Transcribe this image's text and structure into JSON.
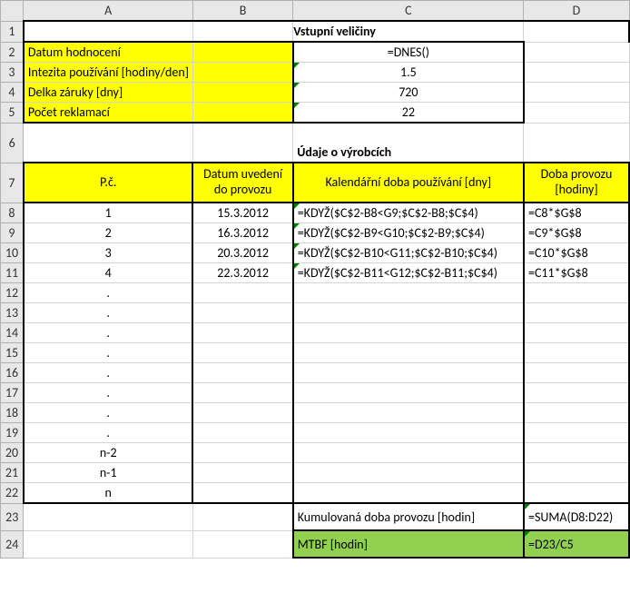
{
  "colHeaders": {
    "A": "A",
    "B": "B",
    "C": "C",
    "D": "D"
  },
  "rowHeaders": [
    "1",
    "2",
    "3",
    "4",
    "5",
    "6",
    "7",
    "8",
    "9",
    "10",
    "11",
    "12",
    "13",
    "14",
    "15",
    "16",
    "17",
    "18",
    "19",
    "20",
    "21",
    "22",
    "23",
    "24"
  ],
  "section1": {
    "title": "Vstupní veličiny",
    "rows": [
      {
        "label": "Datum hodnocení",
        "value": "=DNES()"
      },
      {
        "label": "Intezita používání [hodiny/den]",
        "value": "1.5"
      },
      {
        "label": "Delka záruky [dny]",
        "value": "720"
      },
      {
        "label": "Počet reklamací",
        "value": "22"
      }
    ]
  },
  "section2": {
    "title": "Údaje o výrobcích",
    "headers": {
      "A": "P.č.",
      "B": "Datum uvedení do provozu",
      "C": "Kalendářní doba používání [dny]",
      "D": "Doba provozu [hodiny]"
    },
    "rows": [
      {
        "A": "1",
        "B": "15.3.2012",
        "C": "=KDYŽ($C$2-B8<G9;$C$2-B8;$C$4)",
        "D": "=C8*$G$8"
      },
      {
        "A": "2",
        "B": "16.3.2012",
        "C": "=KDYŽ($C$2-B9<G10;$C$2-B9;$C$4)",
        "D": "=C9*$G$8"
      },
      {
        "A": "3",
        "B": "20.3.2012",
        "C": "=KDYŽ($C$2-B10<G11;$C$2-B10;$C$4)",
        "D": "=C10*$G$8"
      },
      {
        "A": "4",
        "B": "22.3.2012",
        "C": "=KDYŽ($C$2-B11<G12;$C$2-B11;$C$4)",
        "D": "=C11*$G$8"
      },
      {
        "A": ".",
        "B": "",
        "C": "",
        "D": ""
      },
      {
        "A": ".",
        "B": "",
        "C": "",
        "D": ""
      },
      {
        "A": ".",
        "B": "",
        "C": "",
        "D": ""
      },
      {
        "A": ".",
        "B": "",
        "C": "",
        "D": ""
      },
      {
        "A": ".",
        "B": "",
        "C": "",
        "D": ""
      },
      {
        "A": ".",
        "B": "",
        "C": "",
        "D": ""
      },
      {
        "A": ".",
        "B": "",
        "C": "",
        "D": ""
      },
      {
        "A": ".",
        "B": "",
        "C": "",
        "D": ""
      },
      {
        "A": "n-2",
        "B": "",
        "C": "",
        "D": ""
      },
      {
        "A": "n-1",
        "B": "",
        "C": "",
        "D": ""
      },
      {
        "A": "n",
        "B": "",
        "C": "",
        "D": ""
      }
    ]
  },
  "footer": {
    "row1": {
      "C": "Kumulovaná doba provozu [hodin]",
      "D": "=SUMA(D8:D22)"
    },
    "row2": {
      "C": "MTBF [hodin]",
      "D": "=D23/C5"
    }
  }
}
